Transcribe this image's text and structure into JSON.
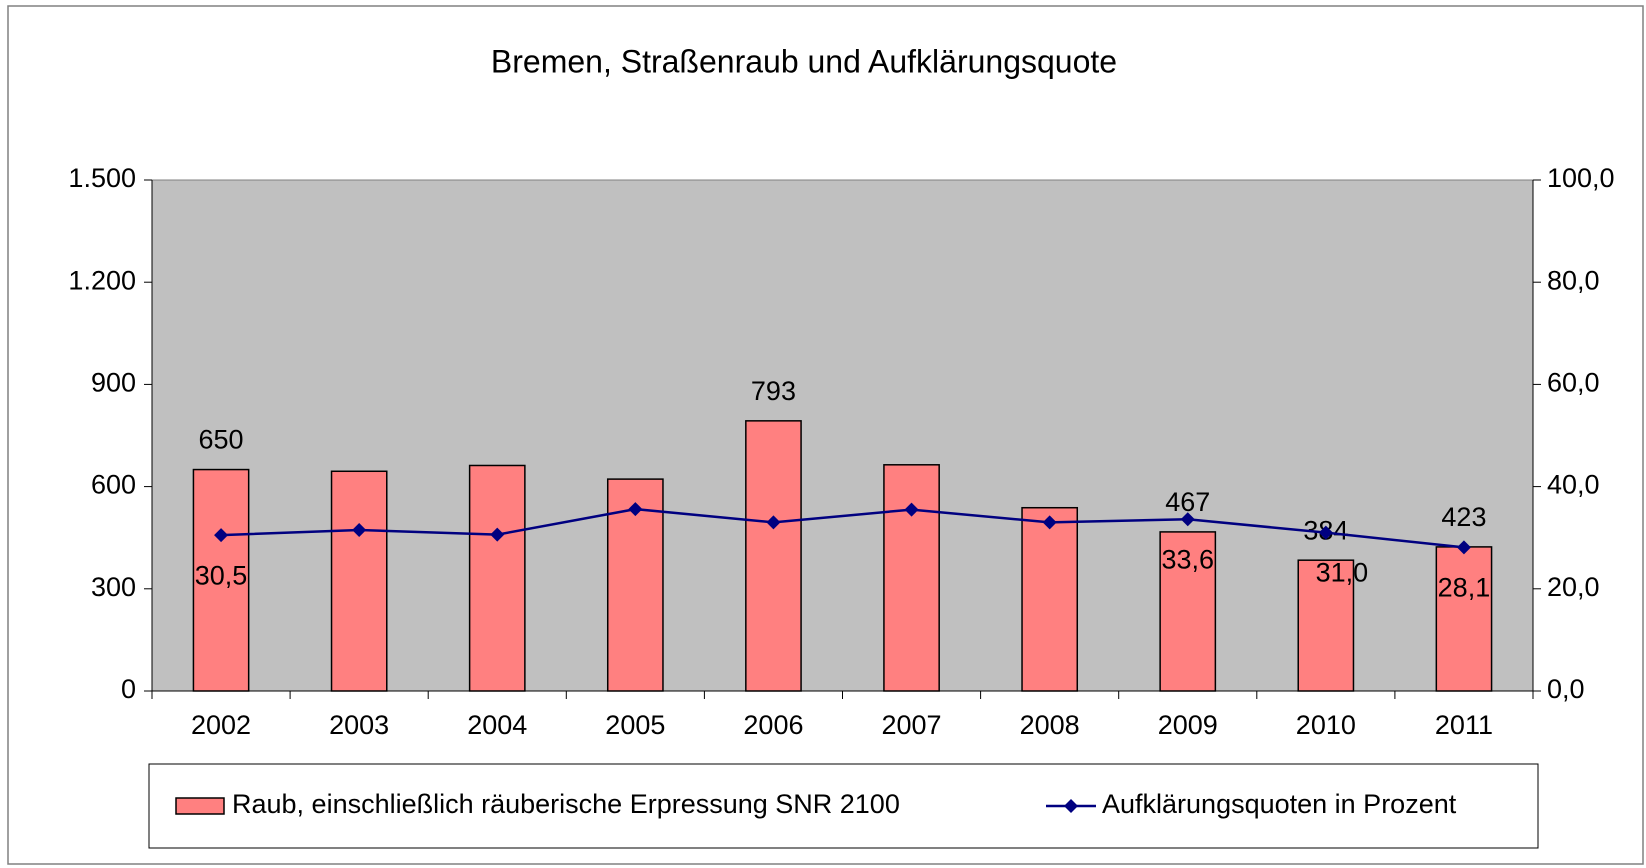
{
  "chart_data": {
    "type": "bar",
    "title": "Bremen, Straßenraub und Aufklärungsquote",
    "categories": [
      "2002",
      "2003",
      "2004",
      "2005",
      "2006",
      "2007",
      "2008",
      "2009",
      "2010",
      "2011"
    ],
    "series": [
      {
        "name": "Raub, einschließlich räuberische Erpressung SNR 2100",
        "type": "bar",
        "color": "#ff8080",
        "values": [
          650,
          645,
          662,
          622,
          793,
          664,
          538,
          467,
          384,
          423
        ],
        "value_labels": [
          "650",
          null,
          null,
          null,
          "793",
          null,
          null,
          "467",
          "384",
          "423"
        ]
      },
      {
        "name": "Aufklärungsquoten in Prozent",
        "type": "line",
        "axis": "y2",
        "color": "#000080",
        "values": [
          30.5,
          31.5,
          30.6,
          35.6,
          33.0,
          35.5,
          33.0,
          33.6,
          31.0,
          28.1
        ],
        "value_labels": [
          "30,5",
          null,
          null,
          null,
          null,
          null,
          null,
          "33,6",
          "31,0",
          "28,1"
        ]
      }
    ],
    "ylim": [
      0,
      1500
    ],
    "yticks": [
      0,
      300,
      600,
      900,
      {
        "value": 1200,
        "label": "1.200"
      },
      {
        "value": 1500,
        "label": "1.500"
      }
    ],
    "y2lim": [
      0,
      100
    ],
    "y2ticks": [
      {
        "value": 0,
        "label": "0,0"
      },
      {
        "value": 20,
        "label": "20,0"
      },
      {
        "value": 40,
        "label": "40,0"
      },
      {
        "value": 60,
        "label": "60,0"
      },
      {
        "value": 80,
        "label": "80,0"
      },
      {
        "value": 100,
        "label": "100,0"
      }
    ],
    "plot_background": "#c0c0c0"
  }
}
